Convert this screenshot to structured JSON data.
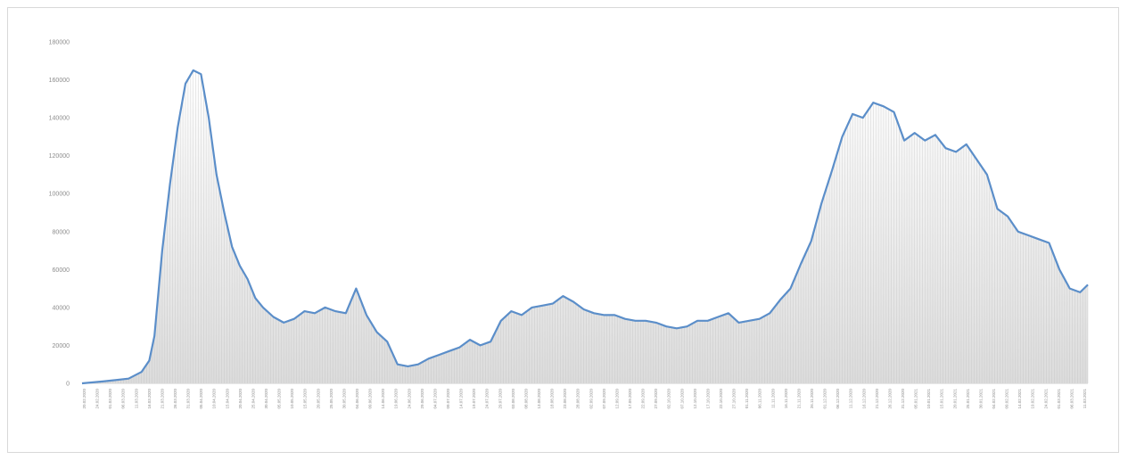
{
  "chart_data": {
    "type": "area",
    "title": "",
    "xlabel": "",
    "ylabel": "",
    "ylim": [
      0,
      180000
    ],
    "y_ticks": [
      "0",
      "20000",
      "40000",
      "60000",
      "80000",
      "100000",
      "120000",
      "140000",
      "160000",
      "180000"
    ],
    "grid": false,
    "legend": "none",
    "colors": {
      "line": "#5b8ec9",
      "fill_top": "#ffffff",
      "fill_bottom": "#d9d9d9",
      "bars": "#bfbfbf"
    },
    "x_tick_labels": [
      "20.02.2020",
      "24.02.2020",
      "01.03.2020",
      "06.03.2020",
      "11.03.2020",
      "16.03.2020",
      "21.03.2020",
      "26.03.2020",
      "31.03.2020",
      "05.04.2020",
      "10.04.2020",
      "15.04.2020",
      "20.04.2020",
      "25.04.2020",
      "30.04.2020",
      "05.05.2020",
      "10.05.2020",
      "15.05.2020",
      "20.05.2020",
      "25.05.2020",
      "30.05.2020",
      "04.06.2020",
      "09.06.2020",
      "14.06.2020",
      "19.06.2020",
      "24.06.2020",
      "29.06.2020",
      "04.07.2020",
      "09.07.2020",
      "14.07.2020",
      "19.07.2020",
      "24.07.2020",
      "29.07.2020",
      "03.08.2020",
      "08.08.2020",
      "13.08.2020",
      "18.08.2020",
      "23.08.2020",
      "28.08.2020",
      "02.09.2020",
      "07.09.2020",
      "12.09.2020",
      "17.09.2020",
      "22.09.2020",
      "27.09.2020",
      "02.10.2020",
      "07.10.2020",
      "12.10.2020",
      "17.10.2020",
      "22.10.2020",
      "27.10.2020",
      "01.11.2020",
      "06.11.2020",
      "11.11.2020",
      "16.11.2020",
      "21.11.2020",
      "26.11.2020",
      "01.12.2020",
      "06.12.2020",
      "11.12.2020",
      "16.12.2020",
      "21.12.2020",
      "26.12.2020",
      "31.12.2020",
      "05.01.2021",
      "10.01.2021",
      "15.01.2021",
      "20.01.2021",
      "25.01.2021",
      "30.01.2021",
      "04.02.2021",
      "09.02.2021",
      "14.02.2021",
      "19.02.2021",
      "24.02.2021",
      "01.03.2021",
      "06.03.2021",
      "11.03.2021"
    ],
    "x": [
      0,
      8,
      18,
      23,
      26,
      28,
      31,
      34,
      37,
      40,
      43,
      46,
      49,
      52,
      55,
      58,
      61,
      64,
      67,
      70,
      74,
      78,
      82,
      86,
      90,
      94,
      98,
      102,
      106,
      110,
      114,
      118,
      122,
      126,
      130,
      134,
      138,
      142,
      146,
      150,
      154,
      158,
      162,
      166,
      170,
      174,
      178,
      182,
      186,
      190,
      194,
      198,
      202,
      206,
      210,
      214,
      218,
      222,
      226,
      230,
      234,
      238,
      242,
      246,
      250,
      254,
      258,
      262,
      266,
      270,
      274,
      278,
      282,
      286,
      290,
      294,
      298,
      302,
      306,
      310,
      314,
      318,
      322,
      326,
      330,
      334,
      338,
      342,
      346,
      350,
      354,
      358,
      362,
      366,
      370,
      374,
      378,
      382,
      386,
      389
    ],
    "values": [
      0,
      1000,
      2500,
      6000,
      12000,
      25000,
      70000,
      105000,
      135000,
      158000,
      165000,
      163000,
      140000,
      110000,
      90000,
      72000,
      62000,
      55000,
      45000,
      40000,
      35000,
      32000,
      34000,
      38000,
      37000,
      40000,
      38000,
      37000,
      50000,
      36000,
      27000,
      22000,
      10000,
      9000,
      10000,
      13000,
      15000,
      17000,
      19000,
      23000,
      20000,
      22000,
      33000,
      38000,
      36000,
      40000,
      41000,
      42000,
      46000,
      43000,
      39000,
      37000,
      36000,
      36000,
      34000,
      33000,
      33000,
      32000,
      30000,
      29000,
      30000,
      33000,
      33000,
      35000,
      37000,
      32000,
      33000,
      34000,
      37000,
      44000,
      50000,
      63000,
      75000,
      95000,
      112000,
      130000,
      142000,
      140000,
      148000,
      146000,
      143000,
      128000,
      132000,
      128000,
      131000,
      124000,
      122000,
      126000,
      118000,
      110000,
      92000,
      88000,
      80000,
      78000,
      76000,
      74000,
      60000,
      50000,
      48000,
      52000
    ]
  }
}
